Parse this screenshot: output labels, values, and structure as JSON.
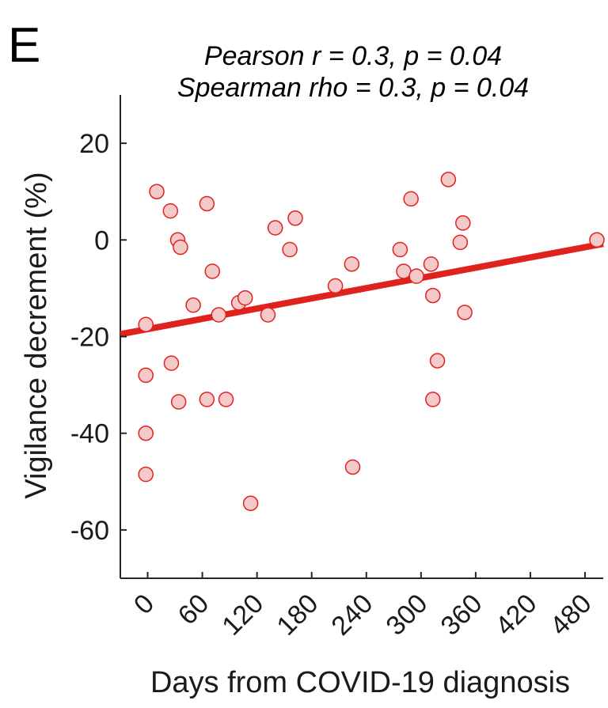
{
  "panel_label": "E",
  "chart_data": {
    "type": "scatter",
    "title_lines": [
      "Pearson r = 0.3, p = 0.04",
      "Spearman rho = 0.3, p = 0.04"
    ],
    "xlabel": "Days from COVID-19 diagnosis",
    "ylabel": "Vigilance decrement (%)",
    "xlim": [
      -30,
      500
    ],
    "ylim": [
      -70,
      30
    ],
    "xticks": [
      0,
      60,
      120,
      180,
      240,
      300,
      360,
      420,
      480
    ],
    "xtick_labels": [
      "0",
      "60",
      "120",
      "180",
      "240",
      "300",
      "360",
      "420",
      "480"
    ],
    "yticks": [
      20,
      0,
      -20,
      -40,
      -60
    ],
    "ytick_labels": [
      "20",
      "0",
      "-20",
      "-40",
      "-60"
    ],
    "grid": false,
    "marker_color": "#e0221e",
    "marker_fill": "#f4c9c9",
    "line_color": "#e0221e",
    "points": [
      {
        "x": -2,
        "y": -48.5
      },
      {
        "x": -2,
        "y": -40
      },
      {
        "x": -2,
        "y": -28
      },
      {
        "x": -2,
        "y": -17.5
      },
      {
        "x": 10,
        "y": 10
      },
      {
        "x": 25,
        "y": 6
      },
      {
        "x": 26,
        "y": -25.5
      },
      {
        "x": 33,
        "y": 0
      },
      {
        "x": 34,
        "y": -33.5
      },
      {
        "x": 36,
        "y": -1.5
      },
      {
        "x": 50,
        "y": -13.5
      },
      {
        "x": 65,
        "y": 7.5
      },
      {
        "x": 65,
        "y": -33
      },
      {
        "x": 71,
        "y": -6.5
      },
      {
        "x": 78,
        "y": -15.5
      },
      {
        "x": 86,
        "y": -33
      },
      {
        "x": 100,
        "y": -13
      },
      {
        "x": 107,
        "y": -12
      },
      {
        "x": 113,
        "y": -54.5
      },
      {
        "x": 132,
        "y": -15.5
      },
      {
        "x": 140,
        "y": 2.5
      },
      {
        "x": 156,
        "y": -2
      },
      {
        "x": 162,
        "y": 4.5
      },
      {
        "x": 206,
        "y": -9.5
      },
      {
        "x": 224,
        "y": -5
      },
      {
        "x": 225,
        "y": -47
      },
      {
        "x": 277,
        "y": -2
      },
      {
        "x": 281,
        "y": -6.5
      },
      {
        "x": 289,
        "y": 8.5
      },
      {
        "x": 295,
        "y": -7.5
      },
      {
        "x": 311,
        "y": -5
      },
      {
        "x": 313,
        "y": -11.5
      },
      {
        "x": 313,
        "y": -33
      },
      {
        "x": 318,
        "y": -25
      },
      {
        "x": 330,
        "y": 12.5
      },
      {
        "x": 343,
        "y": -0.5
      },
      {
        "x": 346,
        "y": 3.5
      },
      {
        "x": 348,
        "y": -15
      },
      {
        "x": 493,
        "y": 0
      }
    ],
    "fit_line": {
      "x": [
        -30,
        500
      ],
      "y": [
        -19.5,
        -0.8
      ]
    }
  }
}
